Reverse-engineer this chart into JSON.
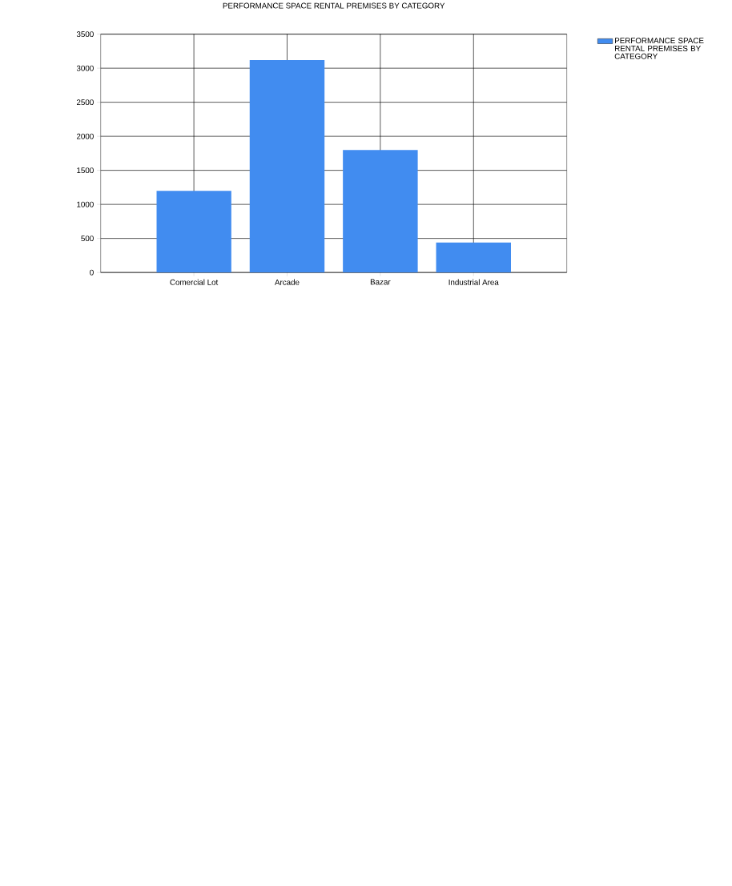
{
  "chart_data": {
    "type": "bar",
    "title": "PERFORMANCE SPACE RENTAL PREMISES BY CATEGORY",
    "categories": [
      "Comercial Lot",
      "Arcade",
      "Bazar",
      "Industrial Area"
    ],
    "series": [
      {
        "name": "PERFORMANCE SPACE RENTAL PREMISES BY CATEGORY",
        "color": "#418cf0",
        "values": [
          1200,
          3120,
          1800,
          440
        ]
      }
    ],
    "ylim": [
      0,
      3500
    ],
    "yticks": [
      0,
      500,
      1000,
      1500,
      2000,
      2500,
      3000,
      3500
    ],
    "grid": true,
    "legend": "top right"
  }
}
